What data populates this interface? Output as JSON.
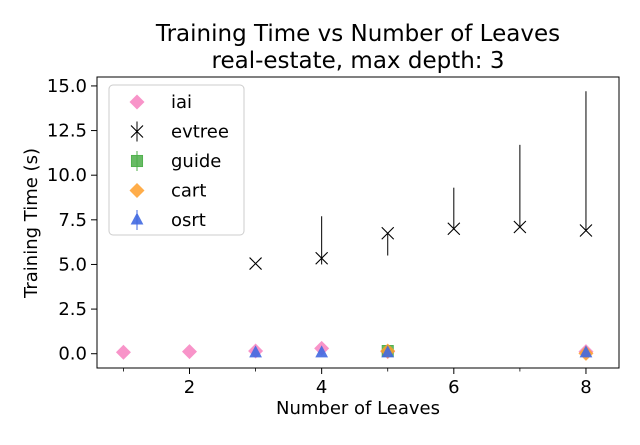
{
  "chart_data": {
    "type": "scatter",
    "title": "Training Time vs Number of Leaves",
    "subtitle": "real-estate, max depth: 3",
    "xlabel": "Number of Leaves",
    "ylabel": "Training Time (s)",
    "xlim": [
      0.6,
      8.5
    ],
    "ylim": [
      -0.8,
      15.5
    ],
    "x_ticks": [
      2,
      4,
      6,
      8
    ],
    "x_tick_labels": [
      "2",
      "4",
      "6",
      "8"
    ],
    "x_minor_ticks": [
      1,
      3,
      5,
      7
    ],
    "y_ticks": [
      0.0,
      2.5,
      5.0,
      7.5,
      10.0,
      12.5,
      15.0
    ],
    "y_tick_labels": [
      "0.0",
      "2.5",
      "5.0",
      "7.5",
      "10.0",
      "12.5",
      "15.0"
    ],
    "grid": false,
    "legend_position": "top-left",
    "series": [
      {
        "name": "iai",
        "color": "#f781bf",
        "marker": "diamond",
        "points": [
          {
            "x": 1,
            "y": 0.08
          },
          {
            "x": 2,
            "y": 0.12
          },
          {
            "x": 3,
            "y": 0.15
          },
          {
            "x": 4,
            "y": 0.3
          },
          {
            "x": 5,
            "y": 0.12
          },
          {
            "x": 8,
            "y": 0.12
          }
        ]
      },
      {
        "name": "evtree",
        "color": "#000000",
        "marker": "x",
        "points": [
          {
            "x": 3,
            "y": 5.05,
            "ylo": 5.05,
            "yhi": 5.05
          },
          {
            "x": 4,
            "y": 5.35,
            "ylo": 5.0,
            "yhi": 7.7
          },
          {
            "x": 5,
            "y": 6.75,
            "ylo": 5.5,
            "yhi": 6.75
          },
          {
            "x": 6,
            "y": 7.0,
            "ylo": 7.0,
            "yhi": 9.3
          },
          {
            "x": 7,
            "y": 7.1,
            "ylo": 7.1,
            "yhi": 11.7
          },
          {
            "x": 8,
            "y": 6.9,
            "ylo": 6.9,
            "yhi": 14.7
          }
        ]
      },
      {
        "name": "guide",
        "color": "#4daf4a",
        "marker": "square",
        "points": [
          {
            "x": 5,
            "y": 0.15
          }
        ]
      },
      {
        "name": "cart",
        "color": "#ff9f2a",
        "marker": "diamond",
        "points": [
          {
            "x": 5,
            "y": 0.15
          },
          {
            "x": 8,
            "y": 0.02
          }
        ]
      },
      {
        "name": "osrt",
        "color": "#4169e1",
        "marker": "triangle",
        "points": [
          {
            "x": 3,
            "y": 0.05
          },
          {
            "x": 4,
            "y": 0.05
          },
          {
            "x": 5,
            "y": 0.05
          },
          {
            "x": 8,
            "y": 0.05
          }
        ]
      }
    ]
  }
}
